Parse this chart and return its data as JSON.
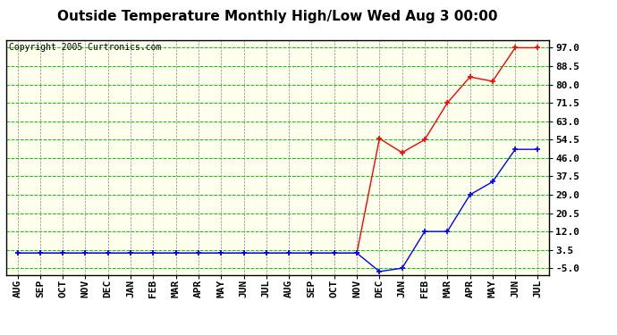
{
  "title": "Outside Temperature Monthly High/Low Wed Aug 3 00:00",
  "copyright": "Copyright 2005 Curtronics.com",
  "x_labels": [
    "AUG",
    "SEP",
    "OCT",
    "NOV",
    "DEC",
    "JAN",
    "FEB",
    "MAR",
    "APR",
    "MAY",
    "JUN",
    "JUL",
    "AUG",
    "SEP",
    "OCT",
    "NOV",
    "DEC",
    "JAN",
    "FEB",
    "MAR",
    "APR",
    "MAY",
    "JUN",
    "JUL"
  ],
  "y_ticks": [
    -5.0,
    3.5,
    12.0,
    20.5,
    29.0,
    37.5,
    46.0,
    54.5,
    63.0,
    71.5,
    80.0,
    88.5,
    97.0
  ],
  "y_min": -8.0,
  "y_max": 100.5,
  "high_values": [
    2.0,
    2.0,
    2.0,
    2.0,
    2.0,
    2.0,
    2.0,
    2.0,
    2.0,
    2.0,
    2.0,
    2.0,
    2.0,
    2.0,
    2.0,
    2.0,
    55.0,
    48.5,
    54.5,
    71.5,
    83.5,
    81.5,
    97.0,
    97.0
  ],
  "low_values": [
    2.0,
    2.0,
    2.0,
    2.0,
    2.0,
    2.0,
    2.0,
    2.0,
    2.0,
    2.0,
    2.0,
    2.0,
    2.0,
    2.0,
    2.0,
    2.0,
    -6.5,
    -5.0,
    12.0,
    12.0,
    29.0,
    35.0,
    50.0,
    50.0
  ],
  "high_color": "#ff0000",
  "low_color": "#0000ff",
  "hgrid_color": "#00cc00",
  "vgrid_color": "#888888",
  "plot_bg": "#ffffee",
  "title_color": "#000000",
  "border_color": "#000000",
  "fig_bg": "#ffffff",
  "title_fontsize": 11,
  "tick_fontsize": 8,
  "copyright_fontsize": 7
}
